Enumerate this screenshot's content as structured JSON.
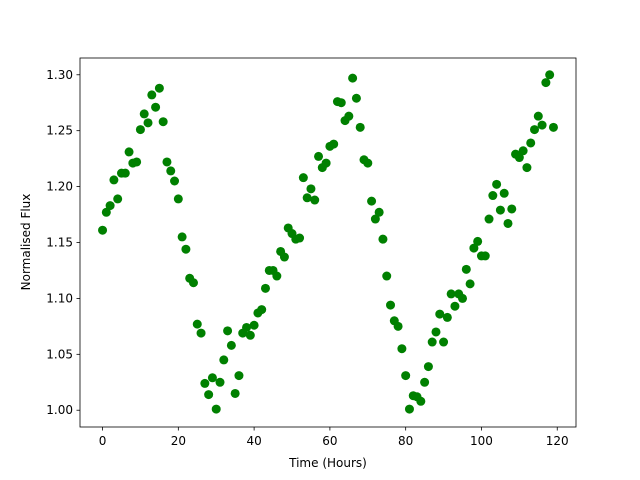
{
  "chart_data": {
    "type": "scatter",
    "xlabel": "Time (Hours)",
    "ylabel": "Normalised Flux",
    "color": "#008000",
    "x": [
      0,
      1,
      2,
      3,
      4,
      5,
      6,
      7,
      8,
      9,
      10,
      11,
      12,
      13,
      14,
      15,
      16,
      17,
      18,
      19,
      20,
      21,
      22,
      23,
      24,
      25,
      26,
      27,
      28,
      29,
      30,
      31,
      32,
      33,
      34,
      35,
      36,
      37,
      38,
      39,
      40,
      41,
      42,
      43,
      44,
      45,
      46,
      47,
      48,
      49,
      50,
      51,
      52,
      53,
      54,
      55,
      56,
      57,
      58,
      59,
      60,
      61,
      62,
      63,
      64,
      65,
      66,
      67,
      68,
      69,
      70,
      71,
      72,
      73,
      74,
      75,
      76,
      77,
      78,
      79,
      80,
      81,
      82,
      83,
      84,
      85,
      86,
      87,
      88,
      89,
      90,
      91,
      92,
      93,
      94,
      95,
      96,
      97,
      98,
      99,
      100,
      101,
      102,
      103,
      104,
      105,
      106,
      107,
      108,
      109,
      110,
      111,
      112,
      113,
      114,
      115,
      116,
      117,
      118,
      119
    ],
    "values": [
      1.161,
      1.177,
      1.183,
      1.206,
      1.189,
      1.212,
      1.212,
      1.231,
      1.221,
      1.222,
      1.251,
      1.265,
      1.257,
      1.282,
      1.271,
      1.288,
      1.258,
      1.222,
      1.214,
      1.205,
      1.189,
      1.155,
      1.144,
      1.118,
      1.114,
      1.077,
      1.069,
      1.024,
      1.014,
      1.029,
      1.001,
      1.025,
      1.045,
      1.071,
      1.058,
      1.015,
      1.031,
      1.069,
      1.074,
      1.067,
      1.076,
      1.087,
      1.09,
      1.109,
      1.125,
      1.125,
      1.12,
      1.142,
      1.137,
      1.163,
      1.158,
      1.153,
      1.154,
      1.208,
      1.19,
      1.198,
      1.188,
      1.227,
      1.217,
      1.221,
      1.236,
      1.238,
      1.276,
      1.275,
      1.259,
      1.263,
      1.297,
      1.279,
      1.253,
      1.224,
      1.221,
      1.187,
      1.171,
      1.177,
      1.153,
      1.12,
      1.094,
      1.08,
      1.075,
      1.055,
      1.031,
      1.001,
      1.013,
      1.012,
      1.008,
      1.025,
      1.039,
      1.061,
      1.07,
      1.086,
      1.061,
      1.083,
      1.104,
      1.093,
      1.104,
      1.1,
      1.126,
      1.113,
      1.145,
      1.151,
      1.138,
      1.138,
      1.171,
      1.192,
      1.202,
      1.179,
      1.194,
      1.167,
      1.18,
      1.229,
      1.226,
      1.232,
      1.217,
      1.239,
      1.251,
      1.263,
      1.255,
      1.293,
      1.3,
      1.253
    ],
    "xlim": [
      -5.95,
      124.95
    ],
    "xticks": [
      0,
      20,
      40,
      60,
      80,
      100,
      120
    ],
    "ylim": [
      0.985,
      1.315
    ],
    "yticks": [
      {
        "value": 1.0,
        "label": "1.00"
      },
      {
        "value": 1.05,
        "label": "1.05"
      },
      {
        "value": 1.1,
        "label": "1.10"
      },
      {
        "value": 1.15,
        "label": "1.15"
      },
      {
        "value": 1.2,
        "label": "1.20"
      },
      {
        "value": 1.25,
        "label": "1.25"
      },
      {
        "value": 1.3,
        "label": "1.30"
      }
    ]
  }
}
